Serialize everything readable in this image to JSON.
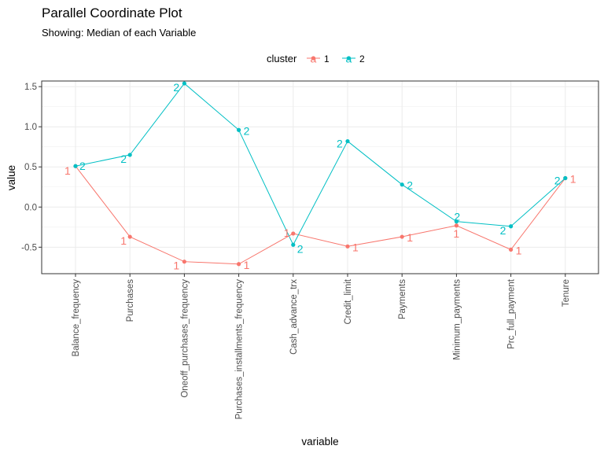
{
  "chart_data": {
    "type": "line",
    "title": "Parallel Coordinate Plot",
    "subtitle": "Showing: Median of each Variable",
    "xlabel": "variable",
    "ylabel": "value",
    "ylim": [
      -0.83,
      1.57
    ],
    "y_ticks": [
      -0.5,
      0.0,
      0.5,
      1.0,
      1.5
    ],
    "y_tick_labels": [
      "-0.5",
      "0.0",
      "0.5",
      "1.0",
      "1.5"
    ],
    "grid": true,
    "legend": {
      "title": "cluster",
      "position": "top"
    },
    "categories": [
      "Balance_frequency",
      "Purchases",
      "Oneoff_purchases_frequency",
      "Purchases_installments_frequency",
      "Cash_advance_trx",
      "Credit_limit",
      "Payments",
      "Minimum_payments",
      "Prc_full_payment",
      "Tenure"
    ],
    "series": [
      {
        "name": "1",
        "color": "#F8766D",
        "values": [
          0.51,
          -0.37,
          -0.68,
          -0.71,
          -0.33,
          -0.49,
          -0.37,
          -0.23,
          -0.53,
          0.36
        ]
      },
      {
        "name": "2",
        "color": "#00BFC4",
        "values": [
          0.51,
          0.65,
          1.54,
          0.96,
          -0.47,
          0.82,
          0.28,
          -0.18,
          -0.24,
          0.36
        ]
      }
    ]
  }
}
